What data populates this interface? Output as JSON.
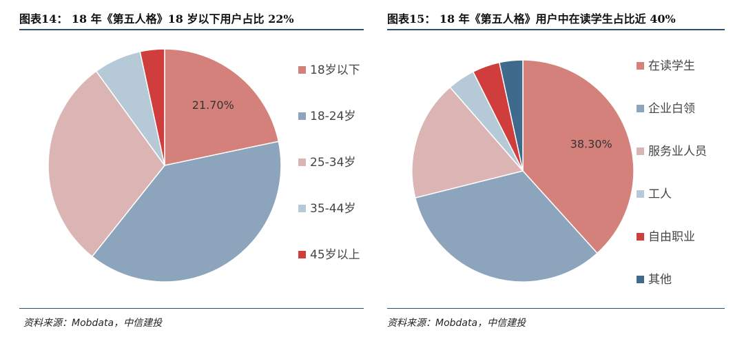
{
  "charts": [
    {
      "title": "图表14： 18 年《第五人格》18 岁以下用户占比 22%",
      "source": "资料来源：Mobdata，中信建投"
    },
    {
      "title": "图表15： 18 年《第五人格》用户中在读学生占比近 40%",
      "source": "资料来源：Mobdata，中信建投"
    }
  ],
  "chart_data": [
    {
      "type": "pie",
      "legend_position": "right",
      "categories": [
        "18岁以下",
        "18-24岁",
        "25-34岁",
        "35-44岁",
        "45岁以上"
      ],
      "values": [
        21.7,
        39.0,
        29.3,
        6.6,
        3.4
      ],
      "colors": [
        "#d4817c",
        "#8ca5bc",
        "#dbb5b4",
        "#b6c9d6",
        "#cf3e3c"
      ],
      "data_labels": [
        "21.70%",
        "",
        "",
        "",
        ""
      ]
    },
    {
      "type": "pie",
      "legend_position": "right",
      "categories": [
        "在读学生",
        "企业白领",
        "服务业人员",
        "工人",
        "自由职业",
        "其他"
      ],
      "values": [
        38.3,
        32.8,
        17.5,
        4.0,
        4.0,
        3.4
      ],
      "colors": [
        "#d4817c",
        "#8ca5bc",
        "#dbb5b4",
        "#b6c9d6",
        "#cf3e3c",
        "#3f6a8c"
      ],
      "data_labels": [
        "38.30%",
        "",
        "",
        "",
        "",
        ""
      ]
    }
  ]
}
